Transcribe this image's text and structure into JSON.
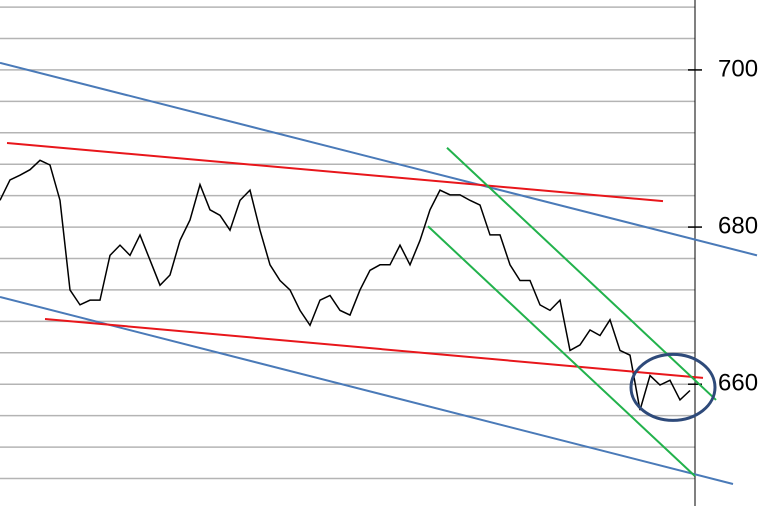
{
  "chart_data": {
    "type": "line",
    "x": [
      0,
      1,
      2,
      3,
      4,
      5,
      6,
      7,
      8,
      9,
      10,
      11,
      12,
      13,
      14,
      15,
      16,
      17,
      18,
      19,
      20,
      21,
      22,
      23,
      24,
      25,
      26,
      27,
      28,
      29,
      30,
      31,
      32,
      33,
      34,
      35,
      36,
      37,
      38,
      39,
      40,
      41,
      42,
      43,
      44,
      45,
      46,
      47,
      48,
      49,
      50,
      51,
      52,
      53,
      54,
      55,
      56,
      57,
      58,
      59,
      60,
      61,
      62,
      63,
      64,
      65,
      66,
      67,
      68,
      69
    ],
    "series": [
      {
        "color": "#000000",
        "values": [
          683.4,
          686.0,
          686.6,
          687.3,
          688.5,
          687.9,
          683.4,
          672.0,
          670.1,
          670.7,
          670.7,
          676.4,
          677.7,
          676.4,
          679.0,
          675.8,
          672.6,
          673.9,
          678.3,
          680.9,
          685.4,
          682.2,
          681.5,
          679.6,
          683.4,
          684.7,
          679.6,
          675.2,
          673.2,
          672.0,
          669.4,
          667.5,
          670.7,
          671.3,
          669.4,
          668.8,
          672.0,
          674.5,
          675.2,
          675.2,
          677.7,
          675.2,
          678.3,
          682.2,
          684.7,
          684.1,
          684.1,
          683.4,
          682.8,
          679.0,
          679.0,
          675.2,
          673.2,
          673.2,
          670.1,
          669.4,
          670.7,
          664.3,
          665.0,
          666.9,
          666.2,
          668.2,
          664.3,
          663.7,
          656.7,
          661.1,
          659.9,
          660.5,
          658.0,
          659.2
        ]
      }
    ],
    "xlim": [
      0,
      77.7
    ],
    "ylim": [
      644.5,
      708.9
    ],
    "yticks": [
      660,
      680,
      700
    ],
    "gridlines": [
      648,
      652,
      656,
      660,
      664,
      668,
      672,
      676,
      680,
      684,
      688,
      692,
      696,
      700,
      704,
      708
    ],
    "trendlines": [
      {
        "color": "#4a7ab8",
        "x": [
          0,
          75.7
        ],
        "values": [
          700.9,
          676.4
        ]
      },
      {
        "color": "#4a7ab8",
        "x": [
          0,
          73.3
        ],
        "values": [
          671.1,
          647.3
        ]
      },
      {
        "color": "#e8161b",
        "x": [
          0.7,
          66.3
        ],
        "values": [
          690.7,
          683.3
        ]
      },
      {
        "color": "#e8161b",
        "x": [
          4.5,
          70.3
        ],
        "values": [
          668.3,
          660.8
        ]
      },
      {
        "color": "#22b24c",
        "x": [
          44.7,
          71.6
        ],
        "values": [
          690.1,
          658.0
        ]
      },
      {
        "color": "#22b24c",
        "x": [
          42.8,
          69.5
        ],
        "values": [
          680.1,
          648.3
        ]
      }
    ],
    "highlight": {
      "color": "#2e4a7a",
      "x": 67.3,
      "value": 659.6,
      "rx": 4.2,
      "ry": 4.2
    }
  }
}
